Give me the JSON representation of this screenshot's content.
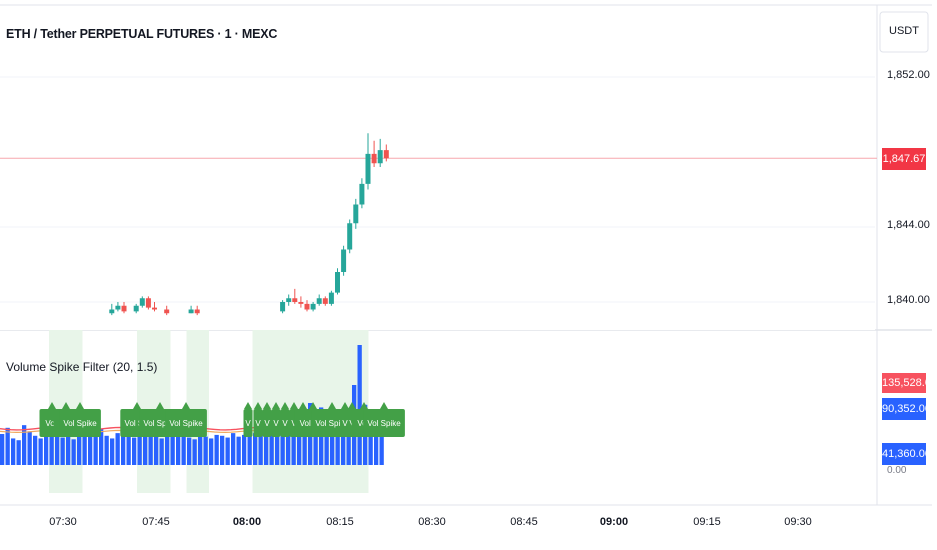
{
  "header": {
    "title": "ETH / Tether PERPETUAL FUTURES · 1 · MEXC",
    "currency": "USDT"
  },
  "price_scale": {
    "ticks": [
      "1,852.00",
      "1,844.00",
      "1,840.00"
    ],
    "last_price": "1,847.67",
    "last_price_color": "#f23645"
  },
  "indicator": {
    "title": "Volume Spike Filter (20, 1.5)",
    "values": [
      "135,528.00",
      "90,352.00",
      "41,360.00"
    ],
    "value_colors": [
      "#f7525f",
      "#2962ff",
      "#2962ff"
    ],
    "partial_label": "0.00",
    "spike_labels": [
      "Vol: ",
      "Vol: ",
      "Vol Spike",
      "Vol Spi",
      "Vol Spike",
      "Vol Spike",
      "V",
      "V",
      "V",
      "V",
      "V",
      "V",
      "V",
      "Vol Spil",
      "Vol Spike",
      "V",
      "V",
      "Vol: ",
      "Vol Spike"
    ]
  },
  "time_axis": {
    "ticks": [
      "07:30",
      "07:45",
      "08:00",
      "08:15",
      "08:30",
      "08:45",
      "09:00",
      "09:15",
      "09:30"
    ],
    "bold": [
      false,
      false,
      true,
      false,
      false,
      false,
      true,
      false,
      false
    ]
  },
  "colors": {
    "up": "#26a69a",
    "down": "#ef5350",
    "volume": "#2962ff",
    "ma_red": "#f7525f",
    "label_green": "#43a047",
    "highlight": "#e8f5e9"
  },
  "chart_data": {
    "type": "candlestick",
    "unit": "USDT",
    "candles": [
      {
        "time": "07:38",
        "o": 1839.4,
        "h": 1839.9,
        "l": 1839.3,
        "c": 1839.6
      },
      {
        "time": "07:39",
        "o": 1839.6,
        "h": 1840.0,
        "l": 1839.5,
        "c": 1839.8
      },
      {
        "time": "07:40",
        "o": 1839.8,
        "h": 1840.0,
        "l": 1839.4,
        "c": 1839.5
      },
      {
        "time": "07:42",
        "o": 1839.5,
        "h": 1839.9,
        "l": 1839.4,
        "c": 1839.8
      },
      {
        "time": "07:43",
        "o": 1839.8,
        "h": 1840.3,
        "l": 1839.7,
        "c": 1840.2
      },
      {
        "time": "07:44",
        "o": 1840.2,
        "h": 1840.3,
        "l": 1839.6,
        "c": 1839.7
      },
      {
        "time": "07:45",
        "o": 1839.7,
        "h": 1840.0,
        "l": 1839.5,
        "c": 1839.6
      },
      {
        "time": "07:47",
        "o": 1839.6,
        "h": 1839.8,
        "l": 1839.3,
        "c": 1839.4
      },
      {
        "time": "07:51",
        "o": 1839.4,
        "h": 1839.8,
        "l": 1839.4,
        "c": 1839.6
      },
      {
        "time": "07:52",
        "o": 1839.6,
        "h": 1839.8,
        "l": 1839.3,
        "c": 1839.4
      },
      {
        "time": "08:06",
        "o": 1839.5,
        "h": 1840.1,
        "l": 1839.4,
        "c": 1840.0
      },
      {
        "time": "08:07",
        "o": 1840.0,
        "h": 1840.4,
        "l": 1839.8,
        "c": 1840.2
      },
      {
        "time": "08:08",
        "o": 1840.2,
        "h": 1840.7,
        "l": 1839.9,
        "c": 1840.0
      },
      {
        "time": "08:09",
        "o": 1840.0,
        "h": 1840.3,
        "l": 1839.7,
        "c": 1839.9
      },
      {
        "time": "08:10",
        "o": 1839.9,
        "h": 1840.1,
        "l": 1839.5,
        "c": 1839.6
      },
      {
        "time": "08:11",
        "o": 1839.6,
        "h": 1840.0,
        "l": 1839.5,
        "c": 1839.9
      },
      {
        "time": "08:12",
        "o": 1839.9,
        "h": 1840.4,
        "l": 1839.8,
        "c": 1840.2
      },
      {
        "time": "08:13",
        "o": 1840.2,
        "h": 1840.3,
        "l": 1839.8,
        "c": 1839.9
      },
      {
        "time": "08:14",
        "o": 1839.9,
        "h": 1840.6,
        "l": 1839.8,
        "c": 1840.5
      },
      {
        "time": "08:15",
        "o": 1840.5,
        "h": 1841.8,
        "l": 1840.4,
        "c": 1841.6
      },
      {
        "time": "08:16",
        "o": 1841.6,
        "h": 1843.0,
        "l": 1841.4,
        "c": 1842.8
      },
      {
        "time": "08:17",
        "o": 1842.8,
        "h": 1844.4,
        "l": 1842.6,
        "c": 1844.2
      },
      {
        "time": "08:18",
        "o": 1844.2,
        "h": 1845.5,
        "l": 1843.9,
        "c": 1845.2
      },
      {
        "time": "08:19",
        "o": 1845.2,
        "h": 1846.6,
        "l": 1845.0,
        "c": 1846.3
      },
      {
        "time": "08:20",
        "o": 1846.3,
        "h": 1849.0,
        "l": 1846.0,
        "c": 1847.9
      },
      {
        "time": "08:21",
        "o": 1847.9,
        "h": 1848.6,
        "l": 1847.2,
        "c": 1847.4
      },
      {
        "time": "08:22",
        "o": 1847.4,
        "h": 1848.7,
        "l": 1847.2,
        "c": 1848.1
      },
      {
        "time": "08:23",
        "o": 1848.1,
        "h": 1848.4,
        "l": 1847.5,
        "c": 1847.67
      }
    ],
    "volume_series": {
      "name": "Volume",
      "values": [
        35000,
        42000,
        30000,
        28000,
        45000,
        38000,
        33000,
        30000,
        36000,
        40000,
        34000,
        31000,
        37000,
        29000,
        44000,
        35000,
        32000,
        38000,
        41000,
        33000,
        30000,
        36000,
        39000,
        34000,
        31000,
        35000,
        33000,
        37000,
        32000,
        30000,
        34000,
        36000,
        38000,
        33000,
        31000,
        29000,
        35000,
        32000,
        30000,
        34000,
        33000,
        31000,
        36000,
        32000,
        34000,
        38000,
        36000,
        42000,
        40000,
        45000,
        48000,
        44000,
        60000,
        52000,
        47000,
        43000,
        70000,
        45000,
        65000,
        52000,
        48000,
        55000,
        62000,
        50000,
        90352,
        135528,
        68000,
        58000,
        49000,
        41360
      ]
    },
    "ma_series": [
      {
        "name": "MA red",
        "level": 41000
      },
      {
        "name": "MA orange",
        "level": 38000
      }
    ]
  }
}
